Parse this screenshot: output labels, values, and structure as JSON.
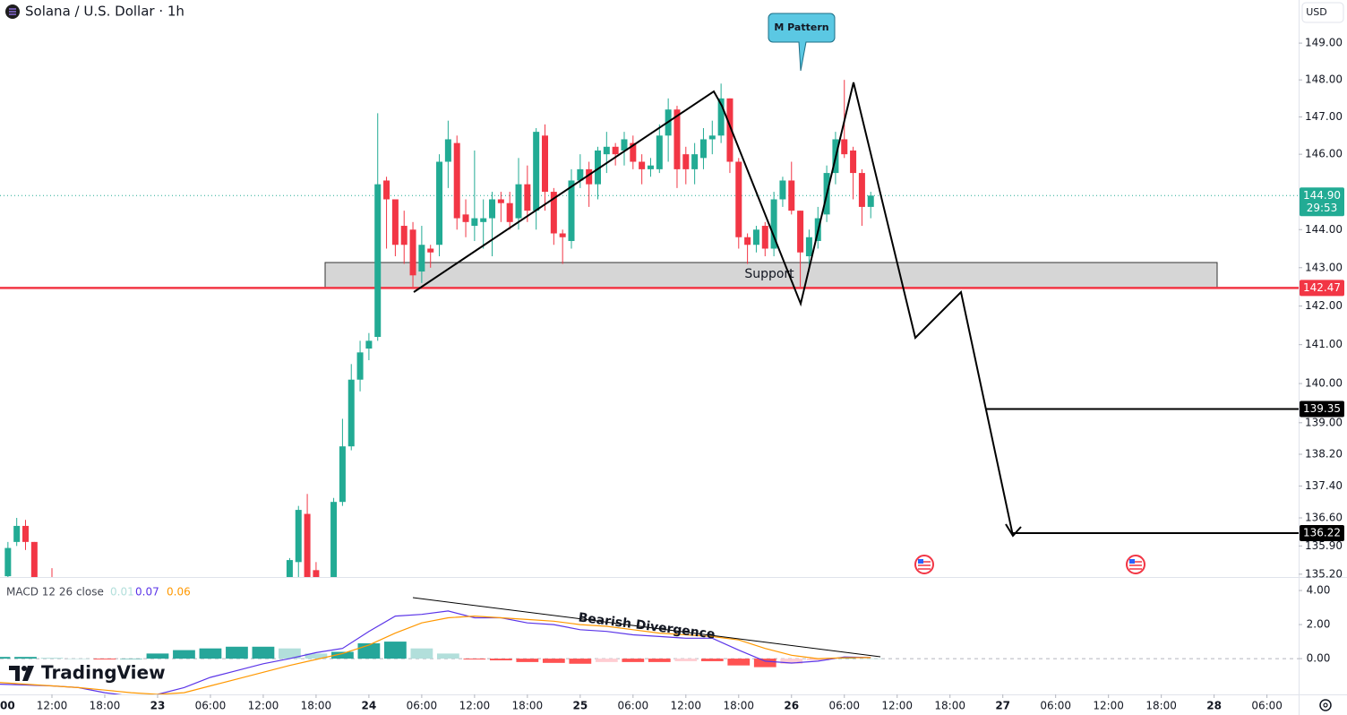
{
  "header": {
    "title": "Solana / U.S. Dollar · 1h",
    "currency": "USD"
  },
  "branding": "TradingView",
  "chart_data": [
    {
      "type": "candlestick",
      "x": [
        -17,
        -16,
        -15,
        -14,
        -12,
        15,
        16,
        17,
        18,
        20,
        21,
        22,
        23,
        24,
        25,
        26,
        27,
        28,
        29,
        30,
        31,
        32,
        33,
        34,
        35,
        36,
        37,
        38,
        39,
        40,
        41,
        42,
        43,
        44,
        45,
        46,
        47,
        48,
        49,
        50,
        51,
        52,
        53,
        54,
        55,
        56,
        57,
        58,
        59,
        60,
        61,
        62,
        63,
        64,
        65,
        66,
        67,
        68,
        69,
        70,
        71,
        72,
        73,
        74,
        75,
        76,
        77,
        78,
        79,
        80,
        81
      ],
      "open": [
        135.15,
        136.0,
        136.4,
        136.0,
        135.0,
        134.9,
        135.5,
        136.7,
        135.3,
        135.0,
        137.0,
        138.4,
        140.1,
        140.9,
        141.2,
        145.3,
        144.8,
        144.1,
        144.0,
        142.9,
        143.5,
        143.6,
        145.8,
        146.3,
        144.4,
        144.1,
        144.2,
        144.3,
        144.8,
        144.7,
        144.3,
        145.2,
        144.5,
        146.5,
        145.0,
        143.9,
        143.7,
        145.3,
        145.6,
        145.2,
        146.0,
        146.2,
        146.1,
        146.3,
        145.8,
        145.6,
        145.6,
        146.5,
        147.2,
        146.0,
        145.6,
        145.9,
        146.4,
        146.5,
        147.5,
        145.8,
        143.8,
        143.6,
        144.1,
        143.5,
        144.8,
        145.3,
        144.5,
        143.3,
        143.7,
        144.4,
        145.5,
        146.4,
        146.1,
        145.5,
        144.6
      ],
      "high": [
        136.0,
        136.6,
        136.55,
        136.0,
        135.35,
        135.6,
        136.9,
        137.2,
        135.5,
        137.1,
        139.1,
        140.5,
        141.1,
        141.3,
        147.1,
        145.4,
        144.8,
        144.5,
        144.2,
        144.1,
        143.6,
        146.0,
        146.9,
        146.5,
        144.8,
        146.1,
        144.8,
        145.0,
        145.0,
        145.0,
        145.9,
        145.7,
        146.7,
        146.8,
        145.1,
        144.0,
        145.6,
        146.0,
        145.8,
        146.2,
        146.6,
        146.3,
        146.6,
        146.5,
        146.0,
        145.9,
        146.8,
        147.5,
        147.3,
        146.2,
        146.3,
        146.7,
        146.9,
        147.9,
        147.5,
        145.9,
        143.9,
        144.1,
        144.2,
        145.0,
        145.4,
        145.8,
        144.5,
        144.0,
        144.6,
        145.7,
        146.6,
        148.0,
        146.2,
        145.6,
        145.0
      ],
      "low": [
        135.1,
        135.9,
        135.8,
        134.9,
        134.8,
        134.8,
        135.0,
        134.9,
        134.9,
        134.9,
        136.9,
        138.3,
        139.8,
        140.6,
        141.1,
        143.5,
        143.3,
        143.1,
        142.5,
        142.6,
        143.0,
        143.3,
        145.1,
        144.0,
        143.8,
        143.7,
        143.5,
        143.3,
        144.2,
        144.0,
        144.0,
        144.2,
        144.0,
        144.5,
        143.6,
        143.1,
        143.5,
        145.1,
        144.6,
        144.8,
        145.5,
        145.7,
        145.7,
        145.6,
        145.2,
        145.4,
        145.5,
        145.8,
        145.1,
        145.2,
        145.2,
        145.6,
        146.0,
        146.3,
        145.5,
        143.5,
        143.1,
        143.4,
        143.3,
        143.3,
        144.6,
        144.4,
        142.5,
        142.9,
        143.5,
        144.2,
        145.2,
        145.9,
        144.8,
        144.1,
        144.3
      ],
      "close": [
        135.85,
        136.4,
        136.0,
        135.0,
        134.9,
        135.55,
        136.8,
        135.1,
        135.0,
        137.0,
        138.4,
        140.1,
        140.8,
        141.1,
        145.2,
        144.8,
        143.6,
        143.6,
        142.8,
        143.6,
        143.4,
        145.8,
        146.4,
        144.3,
        144.2,
        144.3,
        144.3,
        144.8,
        144.7,
        144.2,
        145.2,
        144.5,
        146.6,
        145.0,
        143.9,
        143.8,
        145.3,
        145.6,
        145.2,
        146.1,
        146.2,
        146.0,
        146.4,
        145.8,
        145.6,
        145.7,
        146.5,
        147.2,
        145.6,
        145.6,
        146.0,
        146.4,
        146.5,
        147.5,
        145.8,
        143.8,
        143.6,
        144.0,
        143.5,
        144.8,
        145.3,
        144.5,
        143.4,
        143.8,
        144.3,
        145.5,
        146.4,
        146.0,
        145.5,
        144.6,
        144.9
      ],
      "up_color": "#22ab94",
      "down_color": "#f23645",
      "xlim": [
        -17.9,
        129.6
      ],
      "ylim": [
        135.13,
        150.18
      ],
      "log_scale": true,
      "yticks": [
        {
          "value": 149,
          "label": "149.00"
        },
        {
          "value": 148,
          "label": "148.00"
        },
        {
          "value": 147,
          "label": "147.00"
        },
        {
          "value": 146,
          "label": "146.00"
        },
        {
          "value": 144,
          "label": "144.00"
        },
        {
          "value": 143,
          "label": "143.00"
        },
        {
          "value": 142,
          "label": "142.00"
        },
        {
          "value": 141,
          "label": "141.00"
        },
        {
          "value": 140,
          "label": "140.00"
        },
        {
          "value": 139,
          "label": "139.00"
        },
        {
          "value": 138.2,
          "label": "138.20"
        },
        {
          "value": 137.4,
          "label": "137.40"
        },
        {
          "value": 136.6,
          "label": "136.60"
        },
        {
          "value": 135.9,
          "label": "135.90"
        },
        {
          "value": 135.2,
          "label": "135.20"
        }
      ],
      "xticks": [
        {
          "value": -18,
          "label": "00"
        },
        {
          "value": -12,
          "label": "12:00"
        },
        {
          "value": -6,
          "label": "18:00"
        },
        {
          "value": 0,
          "label": "23"
        },
        {
          "value": 6,
          "label": "06:00"
        },
        {
          "value": 12,
          "label": "12:00"
        },
        {
          "value": 18,
          "label": "18:00"
        },
        {
          "value": 24,
          "label": "24"
        },
        {
          "value": 30,
          "label": "06:00"
        },
        {
          "value": 36,
          "label": "12:00"
        },
        {
          "value": 42,
          "label": "18:00"
        },
        {
          "value": 48,
          "label": "25"
        },
        {
          "value": 54,
          "label": "06:00"
        },
        {
          "value": 60,
          "label": "12:00"
        },
        {
          "value": 66,
          "label": "18:00"
        },
        {
          "value": 72,
          "label": "26"
        },
        {
          "value": 78,
          "label": "06:00"
        },
        {
          "value": 84,
          "label": "12:00"
        },
        {
          "value": 90,
          "label": "18:00"
        },
        {
          "value": 96,
          "label": "27"
        },
        {
          "value": 102,
          "label": "06:00"
        },
        {
          "value": 108,
          "label": "12:00"
        },
        {
          "value": 114,
          "label": "18:00"
        },
        {
          "value": 120,
          "label": "28"
        },
        {
          "value": 126,
          "label": "06:00"
        }
      ],
      "grid": false,
      "price_tags": [
        {
          "value": 144.9,
          "label": "144.90",
          "color": "#22ab94"
        },
        {
          "value": 142.47,
          "label": "142.47",
          "color": "#f23645"
        },
        {
          "value": 139.35,
          "label": "139.35",
          "color": "#000000"
        },
        {
          "value": 136.22,
          "label": "136.22",
          "color": "#000000"
        }
      ],
      "countdown": "29:53",
      "annotations": {
        "pattern": "M Pattern",
        "zone": "Support"
      }
    },
    {
      "type": "macd",
      "title": "MACD 12 26 close",
      "x": [
        -18,
        -15,
        -12,
        -9,
        -6,
        -3,
        0,
        3,
        6,
        9,
        12,
        15,
        18,
        21,
        24,
        27,
        30,
        33,
        36,
        39,
        42,
        45,
        48,
        51,
        54,
        57,
        60,
        63,
        66,
        69,
        72,
        75,
        78,
        81
      ],
      "series": [
        {
          "color": [
            "#26a69a",
            "#b2dfdb",
            "#ffcdd2",
            "#ff5252"
          ],
          "style": "histogram",
          "values": [
            0.1,
            0.1,
            0.05,
            0.0,
            -0.05,
            0.0,
            0.3,
            0.5,
            0.6,
            0.7,
            0.7,
            0.6,
            0.3,
            0.4,
            0.9,
            1.0,
            0.6,
            0.3,
            -0.05,
            -0.1,
            -0.2,
            -0.25,
            -0.3,
            -0.2,
            -0.2,
            -0.2,
            -0.15,
            -0.15,
            -0.4,
            -0.5,
            -0.3,
            -0.1,
            0.05,
            0.01
          ]
        },
        {
          "color": "#5b35e8",
          "style": "line",
          "values": [
            -1.5,
            -1.55,
            -1.6,
            -1.7,
            -2.0,
            -2.2,
            -2.1,
            -1.7,
            -1.1,
            -0.7,
            -0.3,
            0.0,
            0.35,
            0.6,
            1.6,
            2.5,
            2.6,
            2.8,
            2.4,
            2.4,
            2.1,
            2.0,
            1.7,
            1.6,
            1.4,
            1.3,
            1.2,
            1.2,
            0.5,
            -0.15,
            -0.26,
            -0.15,
            0.1,
            0.07
          ]
        },
        {
          "color": "#ff9800",
          "style": "line",
          "values": [
            -1.4,
            -1.5,
            -1.6,
            -1.7,
            -1.85,
            -2.0,
            -2.1,
            -2.0,
            -1.6,
            -1.2,
            -0.8,
            -0.4,
            -0.05,
            0.3,
            0.8,
            1.5,
            2.1,
            2.4,
            2.5,
            2.4,
            2.3,
            2.2,
            2.0,
            1.9,
            1.7,
            1.5,
            1.4,
            1.3,
            1.1,
            0.6,
            0.2,
            0.0,
            0.05,
            0.06
          ]
        }
      ],
      "xlim": [
        -17.9,
        129.6
      ],
      "ylim": [
        -2.1,
        4.74
      ],
      "yticks": [
        {
          "value": 4,
          "label": "4.00"
        },
        {
          "value": 2,
          "label": "2.00"
        },
        {
          "value": 0,
          "label": "0.00"
        }
      ],
      "annotation": "Bearish Divergence"
    }
  ]
}
